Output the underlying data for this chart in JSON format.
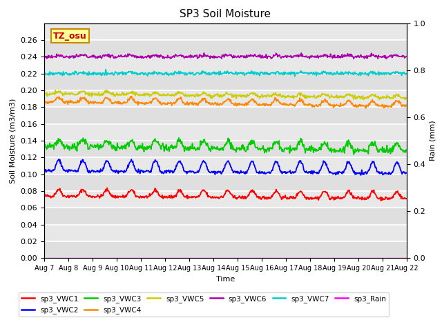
{
  "title": "SP3 Soil Moisture",
  "xlabel": "Time",
  "ylabel_left": "Soil Moisture (m3/m3)",
  "ylabel_right": "Rain (mm)",
  "ylim_left": [
    0.0,
    0.28
  ],
  "ylim_right": [
    0.0,
    1.0
  ],
  "background_color": "#e8e8e8",
  "date_labels": [
    "Aug 7",
    "Aug 8",
    "Aug 9",
    "Aug 10",
    "Aug 11",
    "Aug 12",
    "Aug 13",
    "Aug 14",
    "Aug 15",
    "Aug 16",
    "Aug 17",
    "Aug 18",
    "Aug 19",
    "Aug 20",
    "Aug 21",
    "Aug 22"
  ],
  "series": {
    "sp3_VWC1": {
      "color": "#ff0000",
      "base": 0.074,
      "amp": 0.008,
      "noise": 0.001
    },
    "sp3_VWC2": {
      "color": "#0000ff",
      "base": 0.104,
      "amp": 0.013,
      "noise": 0.001
    },
    "sp3_VWC3": {
      "color": "#00cc00",
      "base": 0.133,
      "amp": 0.009,
      "noise": 0.002
    },
    "sp3_VWC4": {
      "color": "#ff8800",
      "base": 0.186,
      "amp": 0.006,
      "noise": 0.001
    },
    "sp3_VWC5": {
      "color": "#cccc00",
      "base": 0.196,
      "amp": 0.003,
      "noise": 0.001
    },
    "sp3_VWC6": {
      "color": "#aa00aa",
      "base": 0.24,
      "amp": 0.002,
      "noise": 0.001
    },
    "sp3_VWC7": {
      "color": "#00cccc",
      "base": 0.22,
      "amp": 0.001,
      "noise": 0.001
    },
    "sp3_Rain": {
      "color": "#ff00ff",
      "base": 0.0,
      "amp": 0.0,
      "noise": 0.0
    }
  },
  "legend_row1": [
    "sp3_VWC1",
    "sp3_VWC2",
    "sp3_VWC3",
    "sp3_VWC4",
    "sp3_VWC5",
    "sp3_VWC6"
  ],
  "legend_row2": [
    "sp3_VWC7",
    "sp3_Rain"
  ],
  "annotation_text": "TZ_osu",
  "annotation_color": "#cc0000",
  "annotation_bg": "#ffff99",
  "annotation_border": "#cc8800"
}
